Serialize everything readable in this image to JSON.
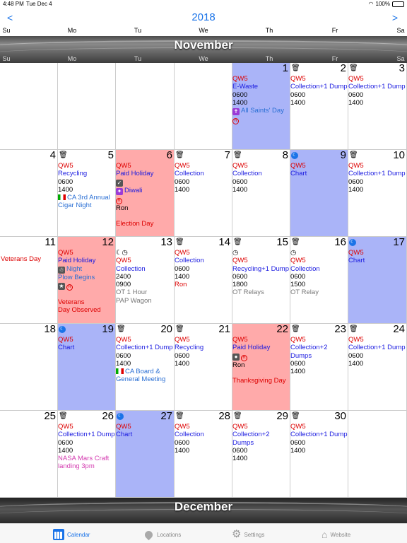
{
  "status": {
    "time": "4:48 PM",
    "date": "Tue Dec 4",
    "battery": "100%"
  },
  "year_nav": {
    "prev": "<",
    "year": "2018",
    "next": ">"
  },
  "weekdays": [
    "Su",
    "Mo",
    "Tu",
    "We",
    "Th",
    "Fr",
    "Sa"
  ],
  "months": {
    "november": "November",
    "december": "December"
  },
  "veterans_label": "Veterans Day",
  "days": {
    "d1": {
      "num": "1",
      "lines": [
        "QW5",
        "E-Waste",
        "0600",
        "1400",
        "All Saints' Day"
      ]
    },
    "d2": {
      "num": "2",
      "lines": [
        "QW5",
        "Collection+1 Dump",
        "0600",
        "1400"
      ]
    },
    "d3": {
      "num": "3",
      "lines": [
        "QW5",
        "Collection+1 Dump",
        "0600",
        "1400"
      ]
    },
    "d4": {
      "num": "4",
      "lines": []
    },
    "d5": {
      "num": "5",
      "lines": [
        "QW5",
        "Recycling",
        "0600",
        "1400",
        "CA 3rd Annual",
        "Cigar Night"
      ]
    },
    "d6": {
      "num": "6",
      "lines": [
        "QW5",
        "Paid Holiday",
        "",
        "Diwali",
        "",
        "Ron",
        "",
        "Election Day"
      ]
    },
    "d7": {
      "num": "7",
      "lines": [
        "QW5",
        "Collection",
        "0600",
        "1400"
      ]
    },
    "d8": {
      "num": "8",
      "lines": [
        "QW5",
        "Collection",
        "0600",
        "1400"
      ]
    },
    "d9": {
      "num": "9",
      "lines": [
        "QW5",
        "Chart"
      ]
    },
    "d10": {
      "num": "10",
      "lines": [
        "QW5",
        "Collection+1 Dump",
        "0600",
        "1400"
      ]
    },
    "d11": {
      "num": "11",
      "lines": []
    },
    "d12": {
      "num": "12",
      "lines": [
        "QW5",
        "Paid Holiday",
        "Night",
        "Plow Begins",
        "",
        "",
        "Veterans",
        "Day Observed"
      ]
    },
    "d13": {
      "num": "13",
      "lines": [
        "",
        "QW5",
        "Collection",
        "2400",
        "0900",
        "OT 1 Hour",
        "PAP Wagon"
      ]
    },
    "d14": {
      "num": "14",
      "lines": [
        "QW5",
        "Collection",
        "0600",
        "1400",
        "Ron"
      ]
    },
    "d15": {
      "num": "15",
      "lines": [
        "",
        "QW5",
        "Recycling+1 Dump",
        "0600",
        "1800",
        "OT Relays"
      ]
    },
    "d16": {
      "num": "16",
      "lines": [
        "",
        "QW5",
        "Collection",
        "0600",
        "1500",
        "OT Relay"
      ]
    },
    "d17": {
      "num": "17",
      "lines": [
        "QW5",
        "Chart"
      ]
    },
    "d18": {
      "num": "18",
      "lines": []
    },
    "d19": {
      "num": "19",
      "lines": [
        "QW5",
        "Chart"
      ]
    },
    "d20": {
      "num": "20",
      "lines": [
        "QW5",
        "Collection+1 Dump",
        "0600",
        "1400",
        "CA Board &",
        "General Meeting"
      ]
    },
    "d21": {
      "num": "21",
      "lines": [
        "QW5",
        "Recycling",
        "0600",
        "1400"
      ]
    },
    "d22": {
      "num": "22",
      "lines": [
        "QW5",
        "Paid Holiday",
        "",
        "Ron",
        "",
        "Thanksgiving Day"
      ]
    },
    "d23": {
      "num": "23",
      "lines": [
        "QW5",
        "Collection+2",
        "Dumps",
        "0600",
        "1400"
      ]
    },
    "d24": {
      "num": "24",
      "lines": [
        "QW5",
        "Collection+1 Dump",
        "0600",
        "1400"
      ]
    },
    "d25": {
      "num": "25",
      "lines": []
    },
    "d26": {
      "num": "26",
      "lines": [
        "QW5",
        "Collection+1 Dump",
        "0600",
        "1400",
        "NASA Mars Craft",
        "landing 3pm"
      ]
    },
    "d27": {
      "num": "27",
      "lines": [
        "QW5",
        "Chart"
      ]
    },
    "d28": {
      "num": "28",
      "lines": [
        "QW5",
        "Collection",
        "0600",
        "1400"
      ]
    },
    "d29": {
      "num": "29",
      "lines": [
        "QW5",
        "Collection+2",
        "Dumps",
        "0600",
        "1400"
      ]
    },
    "d30": {
      "num": "30",
      "lines": [
        "QW5",
        "Collection+1 Dump",
        "0600",
        "1400"
      ]
    }
  },
  "tabs": {
    "calendar": "Calendar",
    "locations": "Locations",
    "settings": "Settings",
    "website": "Website"
  },
  "colors": {
    "accent": "#1a73e8",
    "holiday_bg": "#ffaaaa",
    "chart_bg": "#aab4f8",
    "qw5": "#dd0000"
  }
}
